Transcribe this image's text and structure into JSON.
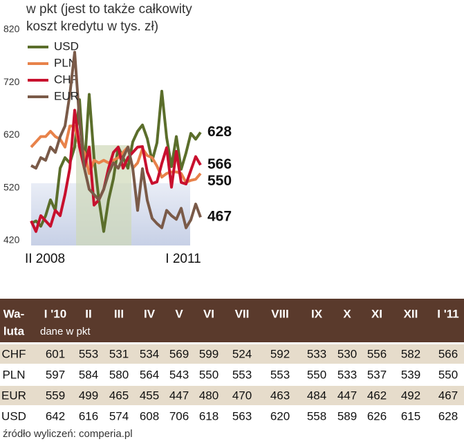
{
  "chart_data": {
    "type": "line",
    "title": [
      "w pkt (jest to także całkowity",
      "koszt kredytu w tys. zł)"
    ],
    "categories": [
      "II 2008",
      null,
      null,
      null,
      null,
      null,
      null,
      null,
      null,
      null,
      null,
      null,
      null,
      null,
      null,
      null,
      null,
      null,
      null,
      null,
      null,
      null,
      null,
      null,
      null,
      null,
      null,
      null,
      null,
      null,
      null,
      null,
      null,
      null,
      null,
      "I 2011"
    ],
    "ylim": [
      420,
      820
    ],
    "yticks": [
      420,
      520,
      620,
      720,
      820
    ],
    "series": [
      {
        "name": "USD",
        "color": "#5b6e2b",
        "values": [
          455,
          460,
          450,
          470,
          500,
          480,
          560,
          580,
          570,
          600,
          690,
          560,
          700,
          580,
          500,
          440,
          500,
          540,
          600,
          580,
          560,
          610,
          630,
          642,
          616,
          574,
          608,
          706,
          618,
          563,
          620,
          558,
          589,
          626,
          615,
          628
        ]
      },
      {
        "name": "PLN",
        "color": "#e8824a",
        "values": [
          600,
          610,
          620,
          620,
          630,
          620,
          615,
          600,
          640,
          640,
          600,
          590,
          550,
          575,
          570,
          575,
          570,
          575,
          580,
          590,
          600,
          560,
          570,
          597,
          584,
          580,
          564,
          543,
          550,
          553,
          553,
          550,
          533,
          537,
          539,
          550
        ]
      },
      {
        "name": "CHF",
        "color": "#c8102e",
        "values": [
          460,
          440,
          470,
          460,
          450,
          480,
          470,
          510,
          560,
          670,
          600,
          560,
          600,
          490,
          500,
          520,
          560,
          590,
          600,
          560,
          580,
          590,
          600,
          601,
          553,
          531,
          534,
          569,
          599,
          524,
          592,
          533,
          530,
          556,
          582,
          566
        ]
      },
      {
        "name": "EUR",
        "color": "#7a5a48",
        "values": [
          565,
          560,
          580,
          575,
          600,
          590,
          620,
          640,
          700,
          780,
          650,
          560,
          520,
          510,
          500,
          520,
          550,
          570,
          560,
          580,
          600,
          560,
          480,
          559,
          499,
          465,
          455,
          447,
          480,
          470,
          463,
          484,
          447,
          462,
          492,
          467
        ]
      }
    ]
  },
  "table": {
    "header": [
      [
        "Wa-",
        "luta"
      ],
      "I '10",
      "II",
      "III",
      "IV",
      "V",
      "VI",
      "VII",
      "VIII",
      "IX",
      "X",
      "XI",
      "XII",
      "I '11"
    ],
    "subheader": "dane w pkt",
    "rows": [
      [
        "CHF",
        601,
        553,
        531,
        534,
        569,
        599,
        524,
        592,
        533,
        530,
        556,
        582,
        566
      ],
      [
        "PLN",
        597,
        584,
        580,
        564,
        543,
        550,
        553,
        553,
        550,
        533,
        537,
        539,
        550
      ],
      [
        "EUR",
        559,
        499,
        465,
        455,
        447,
        480,
        470,
        463,
        484,
        447,
        462,
        492,
        467
      ],
      [
        "USD",
        642,
        616,
        574,
        608,
        706,
        618,
        563,
        620,
        558,
        589,
        626,
        615,
        628
      ]
    ]
  },
  "footer": "źródło wyliczeń: comperia.pl"
}
